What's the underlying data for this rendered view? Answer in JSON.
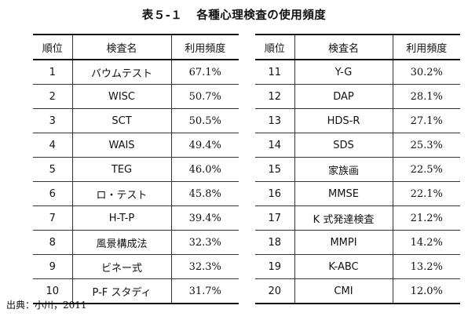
{
  "title": {
    "number": "表５-１",
    "text": "各種心理検査の使用頻度"
  },
  "headers": {
    "rank": "順位",
    "name": "検査名",
    "freq": "利用頻度"
  },
  "left_rows": [
    {
      "rank": "1",
      "name": "バウムテスト",
      "freq": "67.1%"
    },
    {
      "rank": "2",
      "name": "WISC",
      "freq": "50.7%"
    },
    {
      "rank": "3",
      "name": "SCT",
      "freq": "50.5%"
    },
    {
      "rank": "4",
      "name": "WAIS",
      "freq": "49.4%"
    },
    {
      "rank": "5",
      "name": "TEG",
      "freq": "46.0%"
    },
    {
      "rank": "6",
      "name": "ロ・テスト",
      "freq": "45.8%"
    },
    {
      "rank": "7",
      "name": "H-T-P",
      "freq": "39.4%"
    },
    {
      "rank": "8",
      "name": "風景構成法",
      "freq": "32.3%"
    },
    {
      "rank": "9",
      "name": "ビネー式",
      "freq": "32.3%"
    },
    {
      "rank": "10",
      "name": "P-F スタディ",
      "freq": "31.7%"
    }
  ],
  "right_rows": [
    {
      "rank": "11",
      "name": "Y-G",
      "freq": "30.2%"
    },
    {
      "rank": "12",
      "name": "DAP",
      "freq": "28.1%"
    },
    {
      "rank": "13",
      "name": "HDS-R",
      "freq": "27.1%"
    },
    {
      "rank": "14",
      "name": "SDS",
      "freq": "25.3%"
    },
    {
      "rank": "15",
      "name": "家族画",
      "freq": "22.5%"
    },
    {
      "rank": "16",
      "name": "MMSE",
      "freq": "22.1%"
    },
    {
      "rank": "17",
      "name": "K 式発達検査",
      "freq": "21.2%"
    },
    {
      "rank": "18",
      "name": "MMPI",
      "freq": "14.2%"
    },
    {
      "rank": "19",
      "name": "K-ABC",
      "freq": "13.2%"
    },
    {
      "rank": "20",
      "name": "CMI",
      "freq": "12.0%"
    }
  ],
  "source": "出典：小川，2011"
}
